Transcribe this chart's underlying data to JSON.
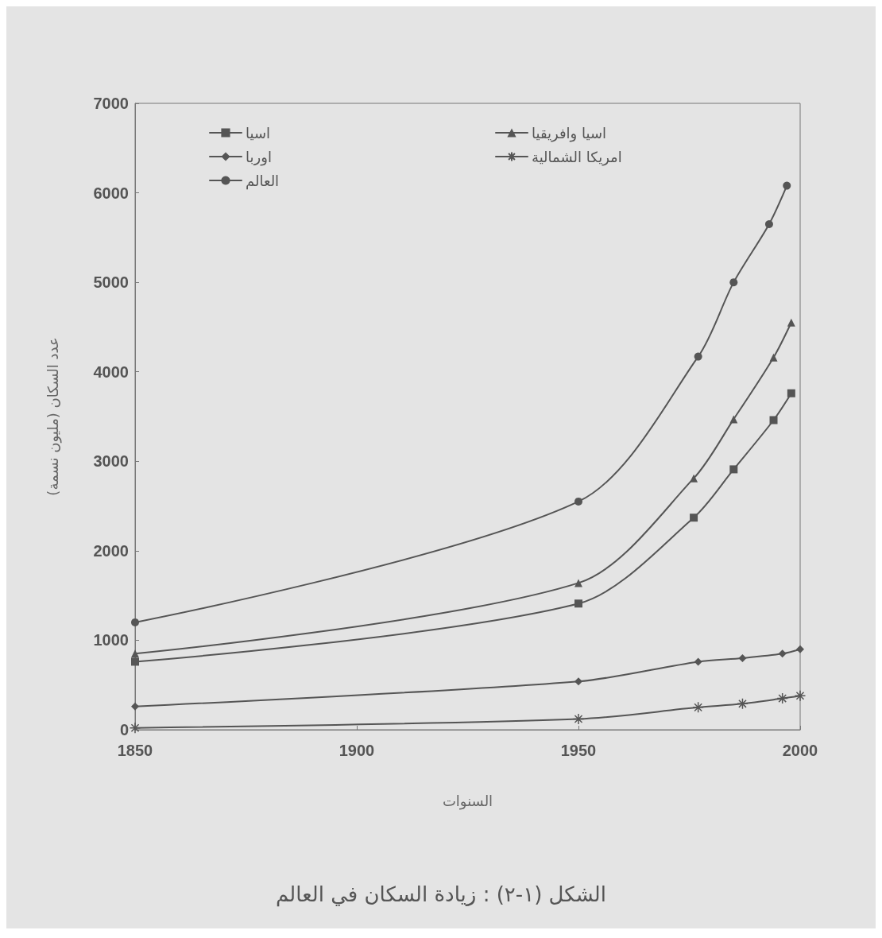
{
  "chart_data": {
    "type": "line",
    "xlabel": "السنوات",
    "ylabel": "عدد السكان (مليون نسمة)",
    "annotations": [
      "الشكل (١-٢) : زيادة السكان في العالم"
    ],
    "xlim": [
      1850,
      2000
    ],
    "xticks": [
      1850,
      1900,
      1950,
      2000
    ],
    "ylim": [
      0,
      7000
    ],
    "yticks": [
      0,
      1000,
      2000,
      3000,
      4000,
      5000,
      6000,
      7000
    ],
    "grid": false,
    "legend": "top",
    "line_style": "solid",
    "series": [
      {
        "name": "اسيا",
        "color": "#555555",
        "marker": "square",
        "x": [
          1850,
          1950,
          1976,
          1985,
          1994,
          1998
        ],
        "values": [
          760,
          1410,
          2370,
          2910,
          3460,
          3760
        ]
      },
      {
        "name": "اوربا",
        "color": "#555555",
        "marker": "diamond",
        "x": [
          1850,
          1950,
          1977,
          1987,
          1996,
          2000
        ],
        "values": [
          260,
          540,
          760,
          800,
          850,
          900
        ]
      },
      {
        "name": "العالم",
        "color": "#555555",
        "marker": "circle",
        "x": [
          1850,
          1950,
          1977,
          1985,
          1993,
          1997
        ],
        "values": [
          1200,
          2550,
          4170,
          5000,
          5650,
          6080
        ]
      },
      {
        "name": "اسيا وافريقيا",
        "color": "#555555",
        "marker": "triangle",
        "x": [
          1850,
          1950,
          1976,
          1985,
          1994,
          1998
        ],
        "values": [
          850,
          1640,
          2810,
          3470,
          4160,
          4550
        ]
      },
      {
        "name": "امريكا الشمالية",
        "color": "#555555",
        "marker": "cross",
        "x": [
          1850,
          1950,
          1977,
          1987,
          1996,
          2000
        ],
        "values": [
          20,
          120,
          250,
          290,
          350,
          380
        ]
      }
    ]
  }
}
